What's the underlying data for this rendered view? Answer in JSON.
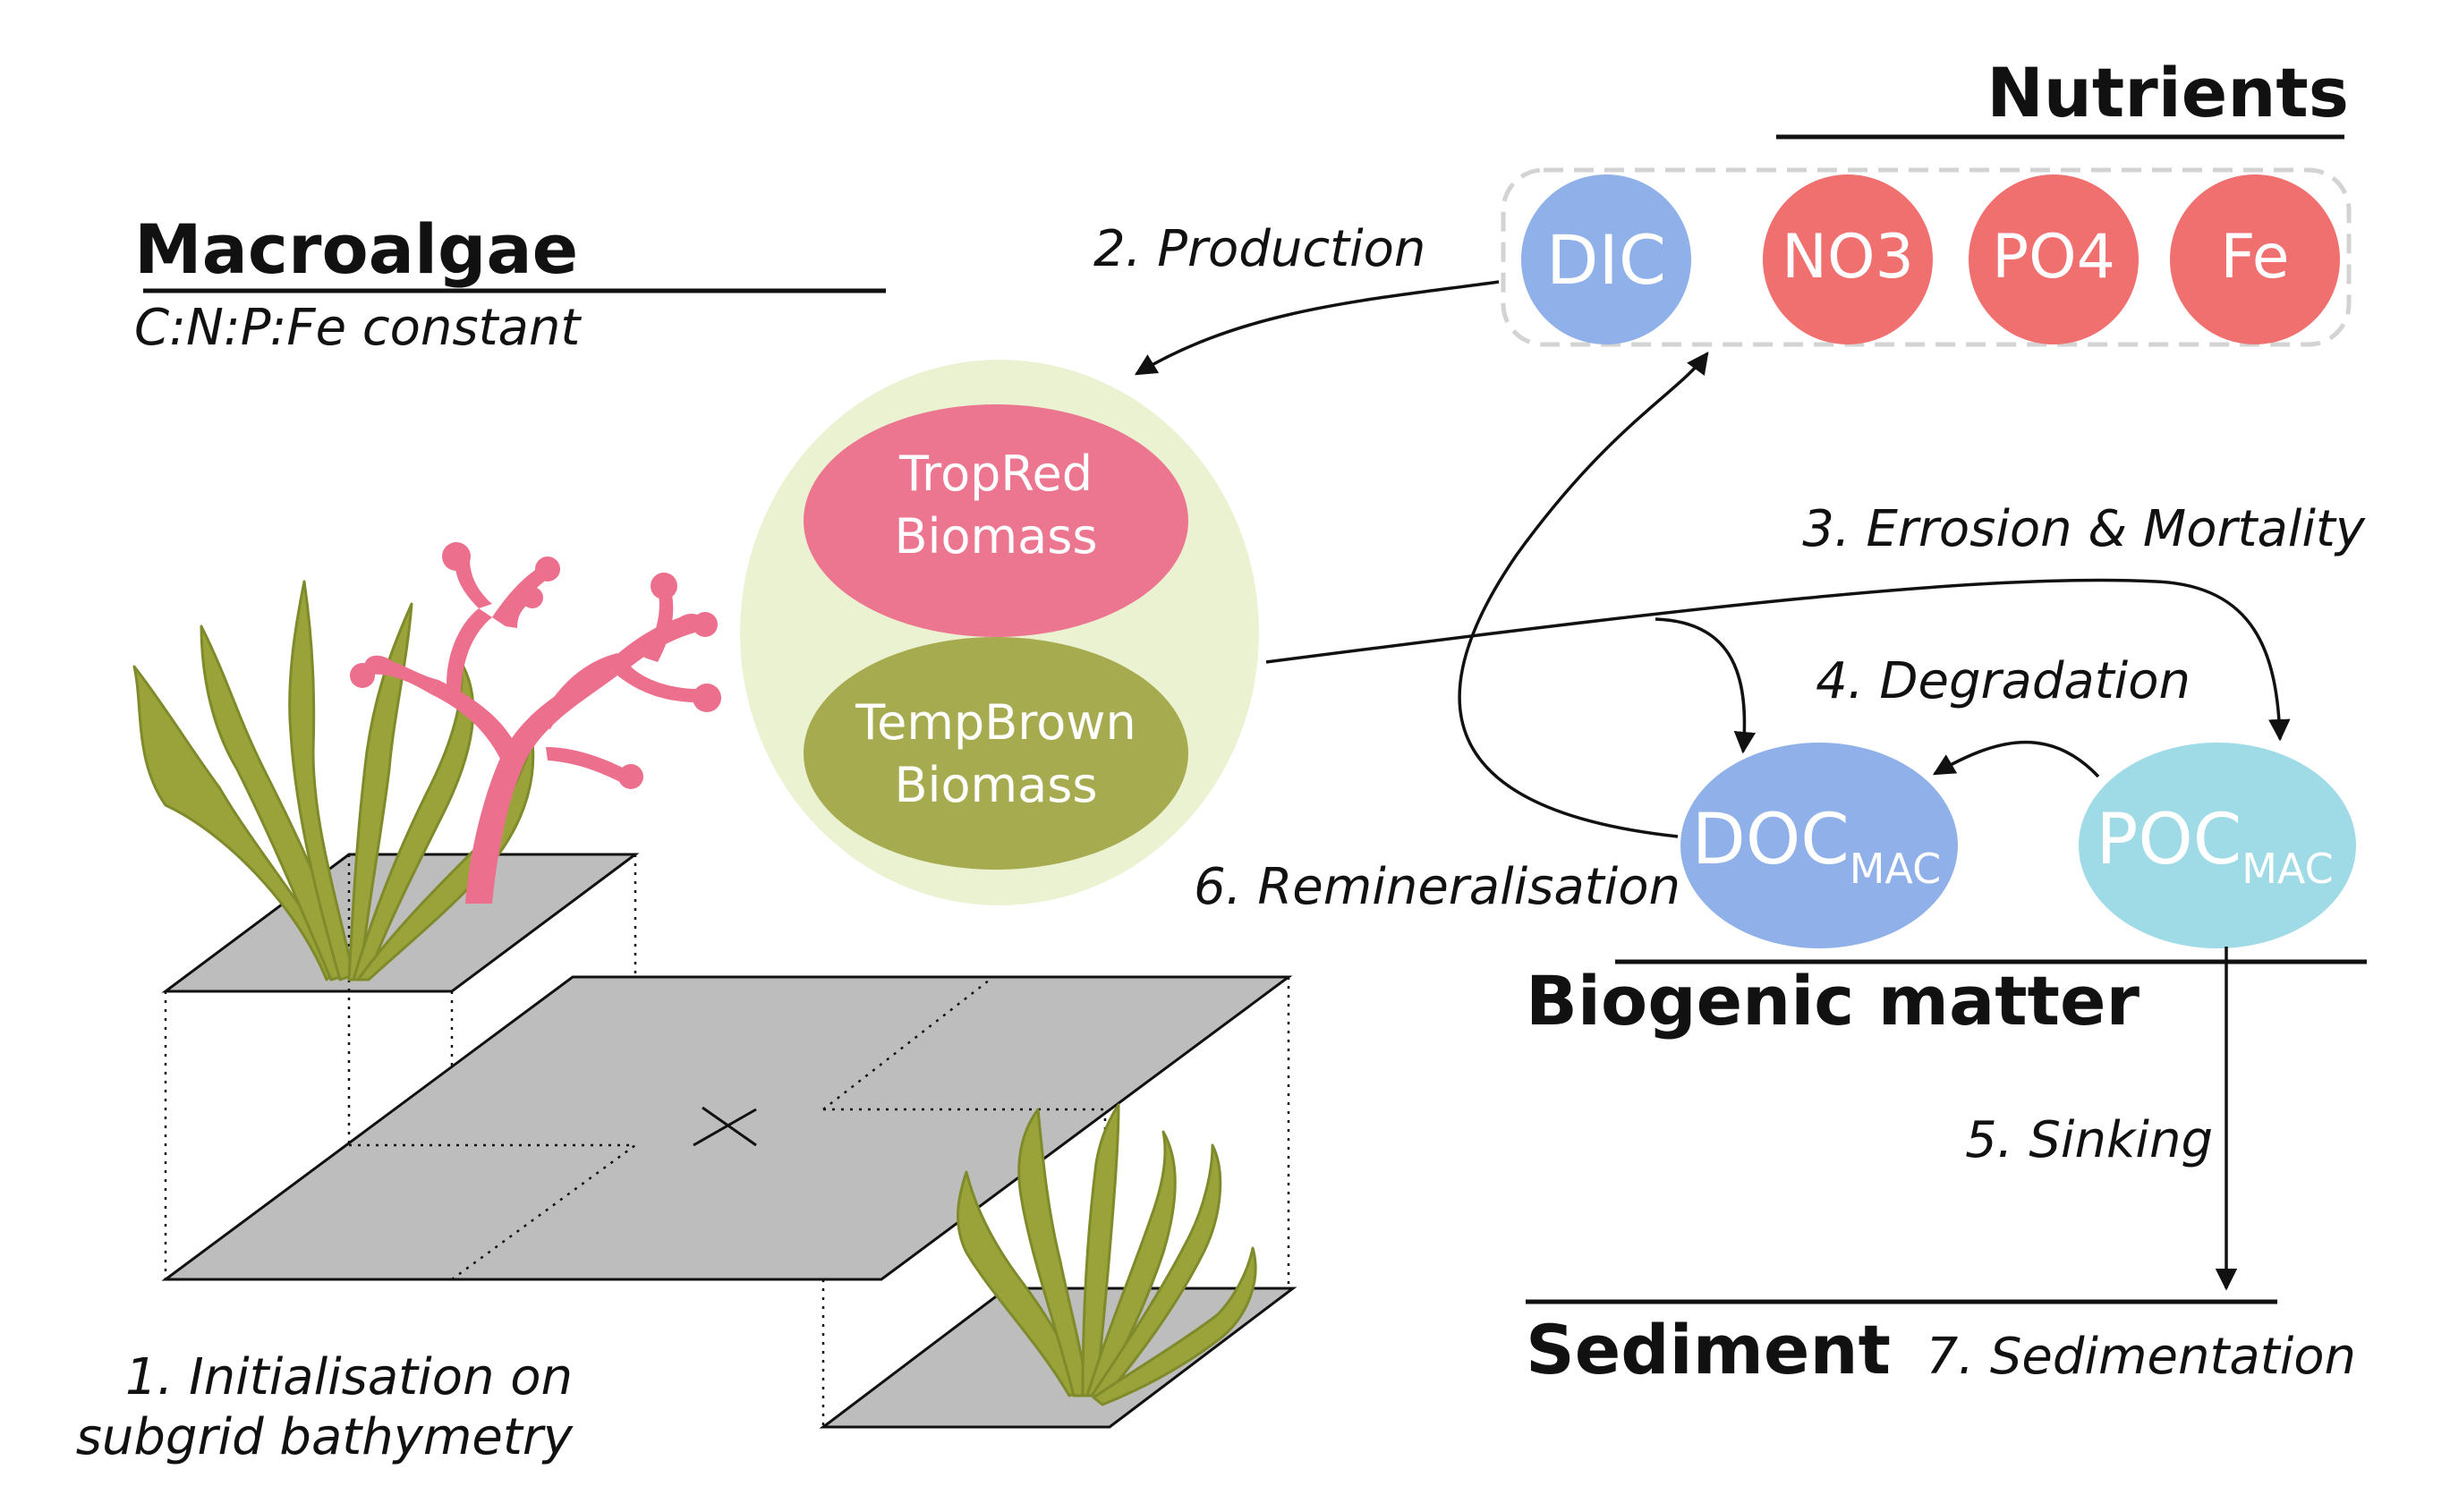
{
  "headings": {
    "macroalgae": "Macroalgae",
    "macroalgae_sub": "C:N:P:Fe constant",
    "nutrients": "Nutrients",
    "biogenic": "Biogenic matter",
    "sediment": "Sediment"
  },
  "nutrients": {
    "dic": "DIC",
    "no3": "NO3",
    "po4": "PO4",
    "fe": "Fe"
  },
  "biomass": {
    "tropred_line1": "TropRed",
    "tropred_line2": "Biomass",
    "tempbrown_line1": "TempBrown",
    "tempbrown_line2": "Biomass"
  },
  "biogenic": {
    "doc": "DOC",
    "doc_sub": "MAC",
    "poc": "POC",
    "poc_sub": "MAC"
  },
  "processes": {
    "p1_line1": "1. Initialisation on",
    "p1_line2": "subgrid bathymetry",
    "p2": "2. Production",
    "p3": "3. Errosion & Mortality",
    "p4": "4. Degradation",
    "p5": "5. Sinking",
    "p6": "6. Remineralisation",
    "p7": "7. Sedimentation"
  },
  "colors": {
    "dic": "#8fb0e8",
    "nutrient_red": "#f07070",
    "tropred": "#ec7590",
    "tempbrown": "#a6ab50",
    "biomass_bg": "#ebf2d2",
    "doc": "#8fb0e8",
    "poc": "#9fdbe6",
    "kelp": "#9aa33a",
    "coral": "#ec6f8d",
    "plate": "#bdbdbd"
  }
}
